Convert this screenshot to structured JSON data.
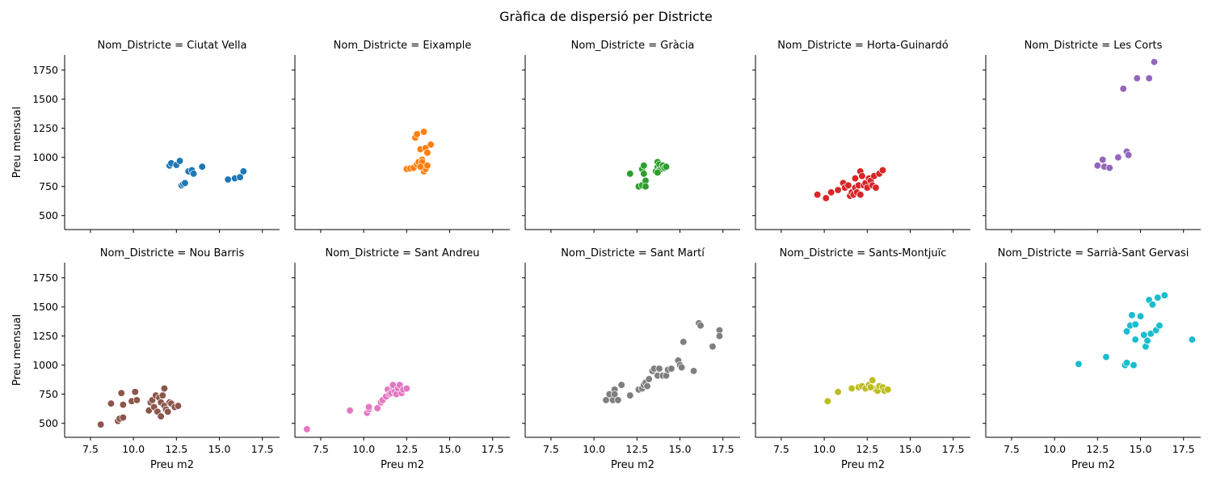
{
  "chart_data": {
    "type": "scatter",
    "title": "Gràfica de dispersió per Districte",
    "facet_label": "Nom_Districte",
    "facet_separator": " = ",
    "xlabel": "Preu m2",
    "ylabel": "Preu mensual",
    "xlim": [
      6.0,
      18.5
    ],
    "ylim": [
      380,
      1880
    ],
    "xticks": [
      7.5,
      10.0,
      12.5,
      15.0,
      17.5
    ],
    "yticks": [
      500,
      750,
      1000,
      1250,
      1500,
      1750
    ],
    "grid": false,
    "legend": "none",
    "panels": [
      {
        "name": "Ciutat Vella",
        "color": "#1f77b4",
        "points": [
          [
            12.1,
            930
          ],
          [
            12.2,
            950
          ],
          [
            12.5,
            935
          ],
          [
            12.7,
            970
          ],
          [
            12.8,
            760
          ],
          [
            12.9,
            770
          ],
          [
            13.0,
            780
          ],
          [
            13.2,
            880
          ],
          [
            13.4,
            890
          ],
          [
            13.5,
            860
          ],
          [
            14.0,
            920
          ],
          [
            15.5,
            810
          ],
          [
            15.9,
            820
          ],
          [
            16.2,
            830
          ],
          [
            16.4,
            880
          ]
        ]
      },
      {
        "name": "Eixample",
        "color": "#ff7f0e",
        "points": [
          [
            12.5,
            900
          ],
          [
            12.7,
            905
          ],
          [
            12.9,
            910
          ],
          [
            13.0,
            1170
          ],
          [
            13.1,
            1200
          ],
          [
            13.1,
            940
          ],
          [
            13.2,
            960
          ],
          [
            13.3,
            1070
          ],
          [
            13.4,
            980
          ],
          [
            13.4,
            960
          ],
          [
            13.5,
            1220
          ],
          [
            13.5,
            880
          ],
          [
            13.6,
            1080
          ],
          [
            13.6,
            900
          ],
          [
            13.7,
            1040
          ],
          [
            13.7,
            930
          ],
          [
            13.9,
            1110
          ],
          [
            13.3,
            920
          ]
        ]
      },
      {
        "name": "Gràcia",
        "color": "#2ca02c",
        "points": [
          [
            12.1,
            860
          ],
          [
            12.6,
            750
          ],
          [
            12.8,
            760
          ],
          [
            12.8,
            900
          ],
          [
            12.9,
            930
          ],
          [
            12.9,
            860
          ],
          [
            13.0,
            800
          ],
          [
            13.0,
            750
          ],
          [
            13.6,
            880
          ],
          [
            13.7,
            920
          ],
          [
            13.7,
            960
          ],
          [
            13.8,
            890
          ],
          [
            13.8,
            940
          ],
          [
            13.9,
            900
          ],
          [
            14.0,
            930
          ],
          [
            14.1,
            910
          ],
          [
            14.2,
            920
          ],
          [
            13.7,
            870
          ]
        ]
      },
      {
        "name": "Horta-Guinardó",
        "color": "#d62728",
        "points": [
          [
            9.6,
            680
          ],
          [
            10.1,
            650
          ],
          [
            10.4,
            700
          ],
          [
            10.8,
            720
          ],
          [
            11.1,
            780
          ],
          [
            11.2,
            740
          ],
          [
            11.4,
            760
          ],
          [
            11.5,
            670
          ],
          [
            11.6,
            700
          ],
          [
            11.7,
            680
          ],
          [
            11.8,
            740
          ],
          [
            11.8,
            820
          ],
          [
            11.9,
            700
          ],
          [
            12.0,
            760
          ],
          [
            12.1,
            880
          ],
          [
            12.1,
            680
          ],
          [
            12.2,
            840
          ],
          [
            12.3,
            760
          ],
          [
            12.4,
            780
          ],
          [
            12.5,
            740
          ],
          [
            12.6,
            820
          ],
          [
            12.7,
            800
          ],
          [
            12.8,
            760
          ],
          [
            12.9,
            840
          ],
          [
            13.0,
            740
          ],
          [
            13.2,
            860
          ],
          [
            13.4,
            890
          ]
        ]
      },
      {
        "name": "Les Corts",
        "color": "#9467bd",
        "points": [
          [
            12.5,
            930
          ],
          [
            12.8,
            980
          ],
          [
            12.9,
            920
          ],
          [
            13.2,
            910
          ],
          [
            13.7,
            1000
          ],
          [
            14.0,
            1590
          ],
          [
            14.2,
            1050
          ],
          [
            14.3,
            1020
          ],
          [
            14.8,
            1680
          ],
          [
            15.5,
            1680
          ],
          [
            15.8,
            1820
          ]
        ]
      },
      {
        "name": "Nou Barris",
        "color": "#8c564b",
        "points": [
          [
            8.1,
            490
          ],
          [
            8.7,
            670
          ],
          [
            9.1,
            520
          ],
          [
            9.2,
            540
          ],
          [
            9.3,
            760
          ],
          [
            9.4,
            660
          ],
          [
            9.4,
            550
          ],
          [
            9.9,
            690
          ],
          [
            10.1,
            770
          ],
          [
            10.2,
            700
          ],
          [
            10.9,
            610
          ],
          [
            11.0,
            680
          ],
          [
            11.1,
            700
          ],
          [
            11.2,
            640
          ],
          [
            11.3,
            740
          ],
          [
            11.4,
            600
          ],
          [
            11.5,
            720
          ],
          [
            11.6,
            560
          ],
          [
            11.6,
            680
          ],
          [
            11.7,
            740
          ],
          [
            11.8,
            800
          ],
          [
            11.8,
            650
          ],
          [
            11.9,
            620
          ],
          [
            12.0,
            600
          ],
          [
            12.1,
            680
          ],
          [
            12.2,
            670
          ],
          [
            12.4,
            640
          ],
          [
            12.6,
            650
          ]
        ]
      },
      {
        "name": "Sant Andreu",
        "color": "#e377c2",
        "points": [
          [
            6.7,
            450
          ],
          [
            9.2,
            610
          ],
          [
            10.2,
            590
          ],
          [
            10.3,
            620
          ],
          [
            10.3,
            640
          ],
          [
            10.8,
            630
          ],
          [
            11.0,
            680
          ],
          [
            11.1,
            700
          ],
          [
            11.3,
            730
          ],
          [
            11.4,
            790
          ],
          [
            11.5,
            750
          ],
          [
            11.6,
            760
          ],
          [
            11.7,
            810
          ],
          [
            11.7,
            830
          ],
          [
            11.8,
            770
          ],
          [
            11.9,
            750
          ],
          [
            12.0,
            800
          ],
          [
            12.1,
            830
          ],
          [
            12.2,
            760
          ],
          [
            12.3,
            790
          ],
          [
            12.5,
            800
          ]
        ]
      },
      {
        "name": "Sant Martí",
        "color": "#7f7f7f",
        "points": [
          [
            10.7,
            700
          ],
          [
            10.9,
            750
          ],
          [
            11.1,
            700
          ],
          [
            11.2,
            790
          ],
          [
            11.2,
            750
          ],
          [
            11.4,
            700
          ],
          [
            11.6,
            830
          ],
          [
            12.1,
            740
          ],
          [
            12.6,
            790
          ],
          [
            12.8,
            800
          ],
          [
            12.9,
            830
          ],
          [
            13.0,
            850
          ],
          [
            13.1,
            820
          ],
          [
            13.2,
            880
          ],
          [
            13.4,
            950
          ],
          [
            13.5,
            970
          ],
          [
            13.7,
            910
          ],
          [
            13.8,
            970
          ],
          [
            14.0,
            910
          ],
          [
            14.2,
            910
          ],
          [
            14.3,
            960
          ],
          [
            14.5,
            970
          ],
          [
            14.9,
            1040
          ],
          [
            15.0,
            1000
          ],
          [
            15.1,
            980
          ],
          [
            15.2,
            1200
          ],
          [
            15.8,
            950
          ],
          [
            16.1,
            1360
          ],
          [
            16.2,
            1340
          ],
          [
            16.9,
            1160
          ],
          [
            17.3,
            1300
          ],
          [
            17.3,
            1250
          ]
        ]
      },
      {
        "name": "Sants-Montjuïc",
        "color": "#bcbd22",
        "points": [
          [
            10.2,
            690
          ],
          [
            10.8,
            770
          ],
          [
            11.6,
            800
          ],
          [
            12.0,
            810
          ],
          [
            12.2,
            820
          ],
          [
            12.4,
            800
          ],
          [
            12.6,
            830
          ],
          [
            12.8,
            870
          ],
          [
            12.9,
            800
          ],
          [
            13.0,
            790
          ],
          [
            13.1,
            780
          ],
          [
            13.2,
            820
          ],
          [
            13.4,
            810
          ],
          [
            13.5,
            780
          ],
          [
            13.7,
            790
          ],
          [
            12.7,
            810
          ]
        ]
      },
      {
        "name": "Sarrià-Sant Gervasi",
        "color": "#17becf",
        "points": [
          [
            11.4,
            1010
          ],
          [
            13.0,
            1070
          ],
          [
            14.1,
            1000
          ],
          [
            14.2,
            1020
          ],
          [
            14.2,
            1290
          ],
          [
            14.4,
            1340
          ],
          [
            14.5,
            1430
          ],
          [
            14.6,
            1000
          ],
          [
            14.7,
            1220
          ],
          [
            14.7,
            1350
          ],
          [
            15.0,
            1420
          ],
          [
            15.2,
            1260
          ],
          [
            15.3,
            1160
          ],
          [
            15.4,
            1210
          ],
          [
            15.5,
            1560
          ],
          [
            15.6,
            1270
          ],
          [
            15.7,
            1520
          ],
          [
            15.9,
            1300
          ],
          [
            16.0,
            1580
          ],
          [
            16.1,
            1340
          ],
          [
            16.4,
            1600
          ],
          [
            18.0,
            1220
          ]
        ]
      }
    ]
  }
}
